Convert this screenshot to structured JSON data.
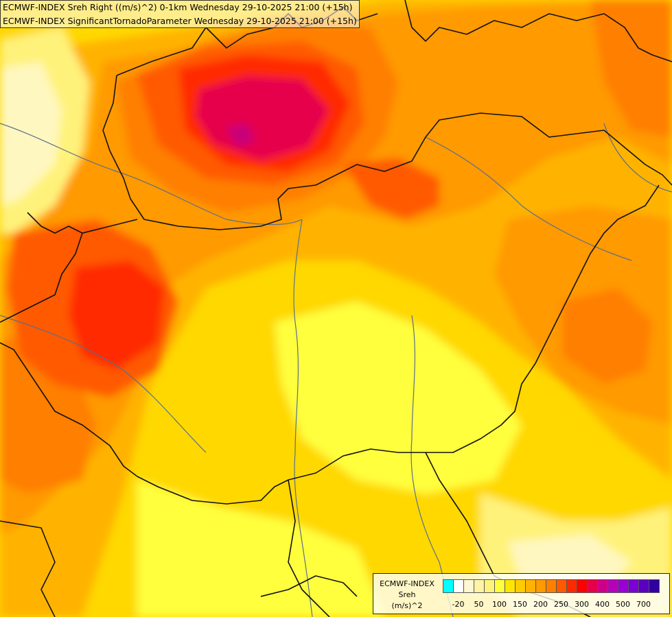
{
  "titles": {
    "line1": "ECMWF-INDEX Sreh Right ((m/s)^2) 0-1km Wednesday 29-10-2025 21:00 (+15h)",
    "line2": "ECMWF-INDEX SignificantTornadoParameter Wednesday 29-10-2025 21:00 (+15h)"
  },
  "legend": {
    "source": "ECMWF-INDEX",
    "variable": "Sreh",
    "unit": "(m/s)^2",
    "colors": [
      "#00ffff",
      "#ffffff",
      "#fff7d0",
      "#fff3a6",
      "#fff27a",
      "#ffff3c",
      "#ffe600",
      "#ffcc00",
      "#ffb300",
      "#ff9a00",
      "#ff7f00",
      "#ff5a00",
      "#ff2a00",
      "#ff0000",
      "#e6004c",
      "#cc0088",
      "#b800b8",
      "#9a00d6",
      "#7a00d6",
      "#5a00c0",
      "#3000a0"
    ],
    "ticks": [
      "-20",
      "50",
      "100",
      "150",
      "200",
      "250",
      "300",
      "400",
      "500",
      "700"
    ]
  },
  "map": {
    "colors": {
      "base": "#ffd800",
      "yellow_light": "#fff27a",
      "yellow_pale": "#fff7c0",
      "yellow": "#ffff3c",
      "orange_light": "#ffb300",
      "orange": "#ff9a00",
      "orange_dark": "#ff7f00",
      "red_orange": "#ff5a00",
      "red": "#ff2a00",
      "crimson": "#e6004c",
      "magenta": "#c8007a",
      "border": "#111111",
      "river": "#5a6e8c"
    }
  }
}
